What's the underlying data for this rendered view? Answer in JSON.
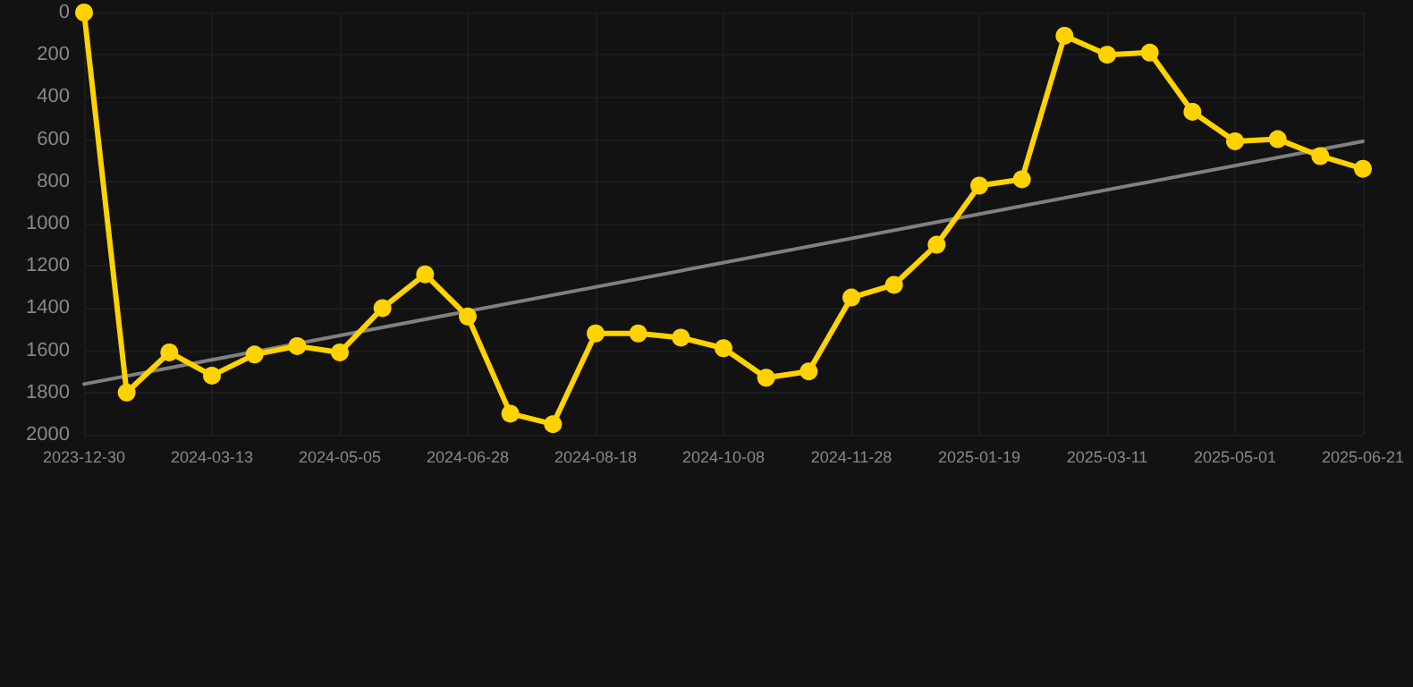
{
  "chart_data": {
    "type": "line",
    "categories": [
      "2023-12-30",
      null,
      null,
      "2024-03-13",
      null,
      null,
      "2024-05-05",
      null,
      null,
      "2024-06-28",
      null,
      null,
      "2024-08-18",
      null,
      null,
      "2024-10-08",
      null,
      null,
      "2024-11-28",
      null,
      null,
      "2025-01-19",
      null,
      null,
      "2025-03-11",
      null,
      null,
      "2025-05-01",
      null,
      null,
      "2025-06-21"
    ],
    "series": [
      {
        "color": "#ffd200",
        "marker": "circle",
        "values": [
          0,
          1800,
          1610,
          1720,
          1620,
          1580,
          1610,
          1400,
          1240,
          1440,
          1900,
          1950,
          1520,
          1520,
          1540,
          1590,
          1730,
          1700,
          1350,
          1290,
          1100,
          820,
          790,
          110,
          200,
          190,
          470,
          610,
          600,
          680,
          740
        ]
      },
      {
        "color": "#808080",
        "marker": "none",
        "values": [
          1760,
          null,
          null,
          null,
          null,
          null,
          null,
          null,
          null,
          null,
          null,
          null,
          null,
          null,
          null,
          null,
          null,
          null,
          null,
          null,
          null,
          null,
          null,
          null,
          null,
          null,
          null,
          null,
          null,
          null,
          610
        ]
      }
    ],
    "ylim": [
      2000,
      0
    ],
    "yticks": [
      0,
      200,
      400,
      600,
      800,
      1000,
      1200,
      1400,
      1600,
      1800,
      2000
    ],
    "grid": true,
    "line_style": "solid"
  }
}
